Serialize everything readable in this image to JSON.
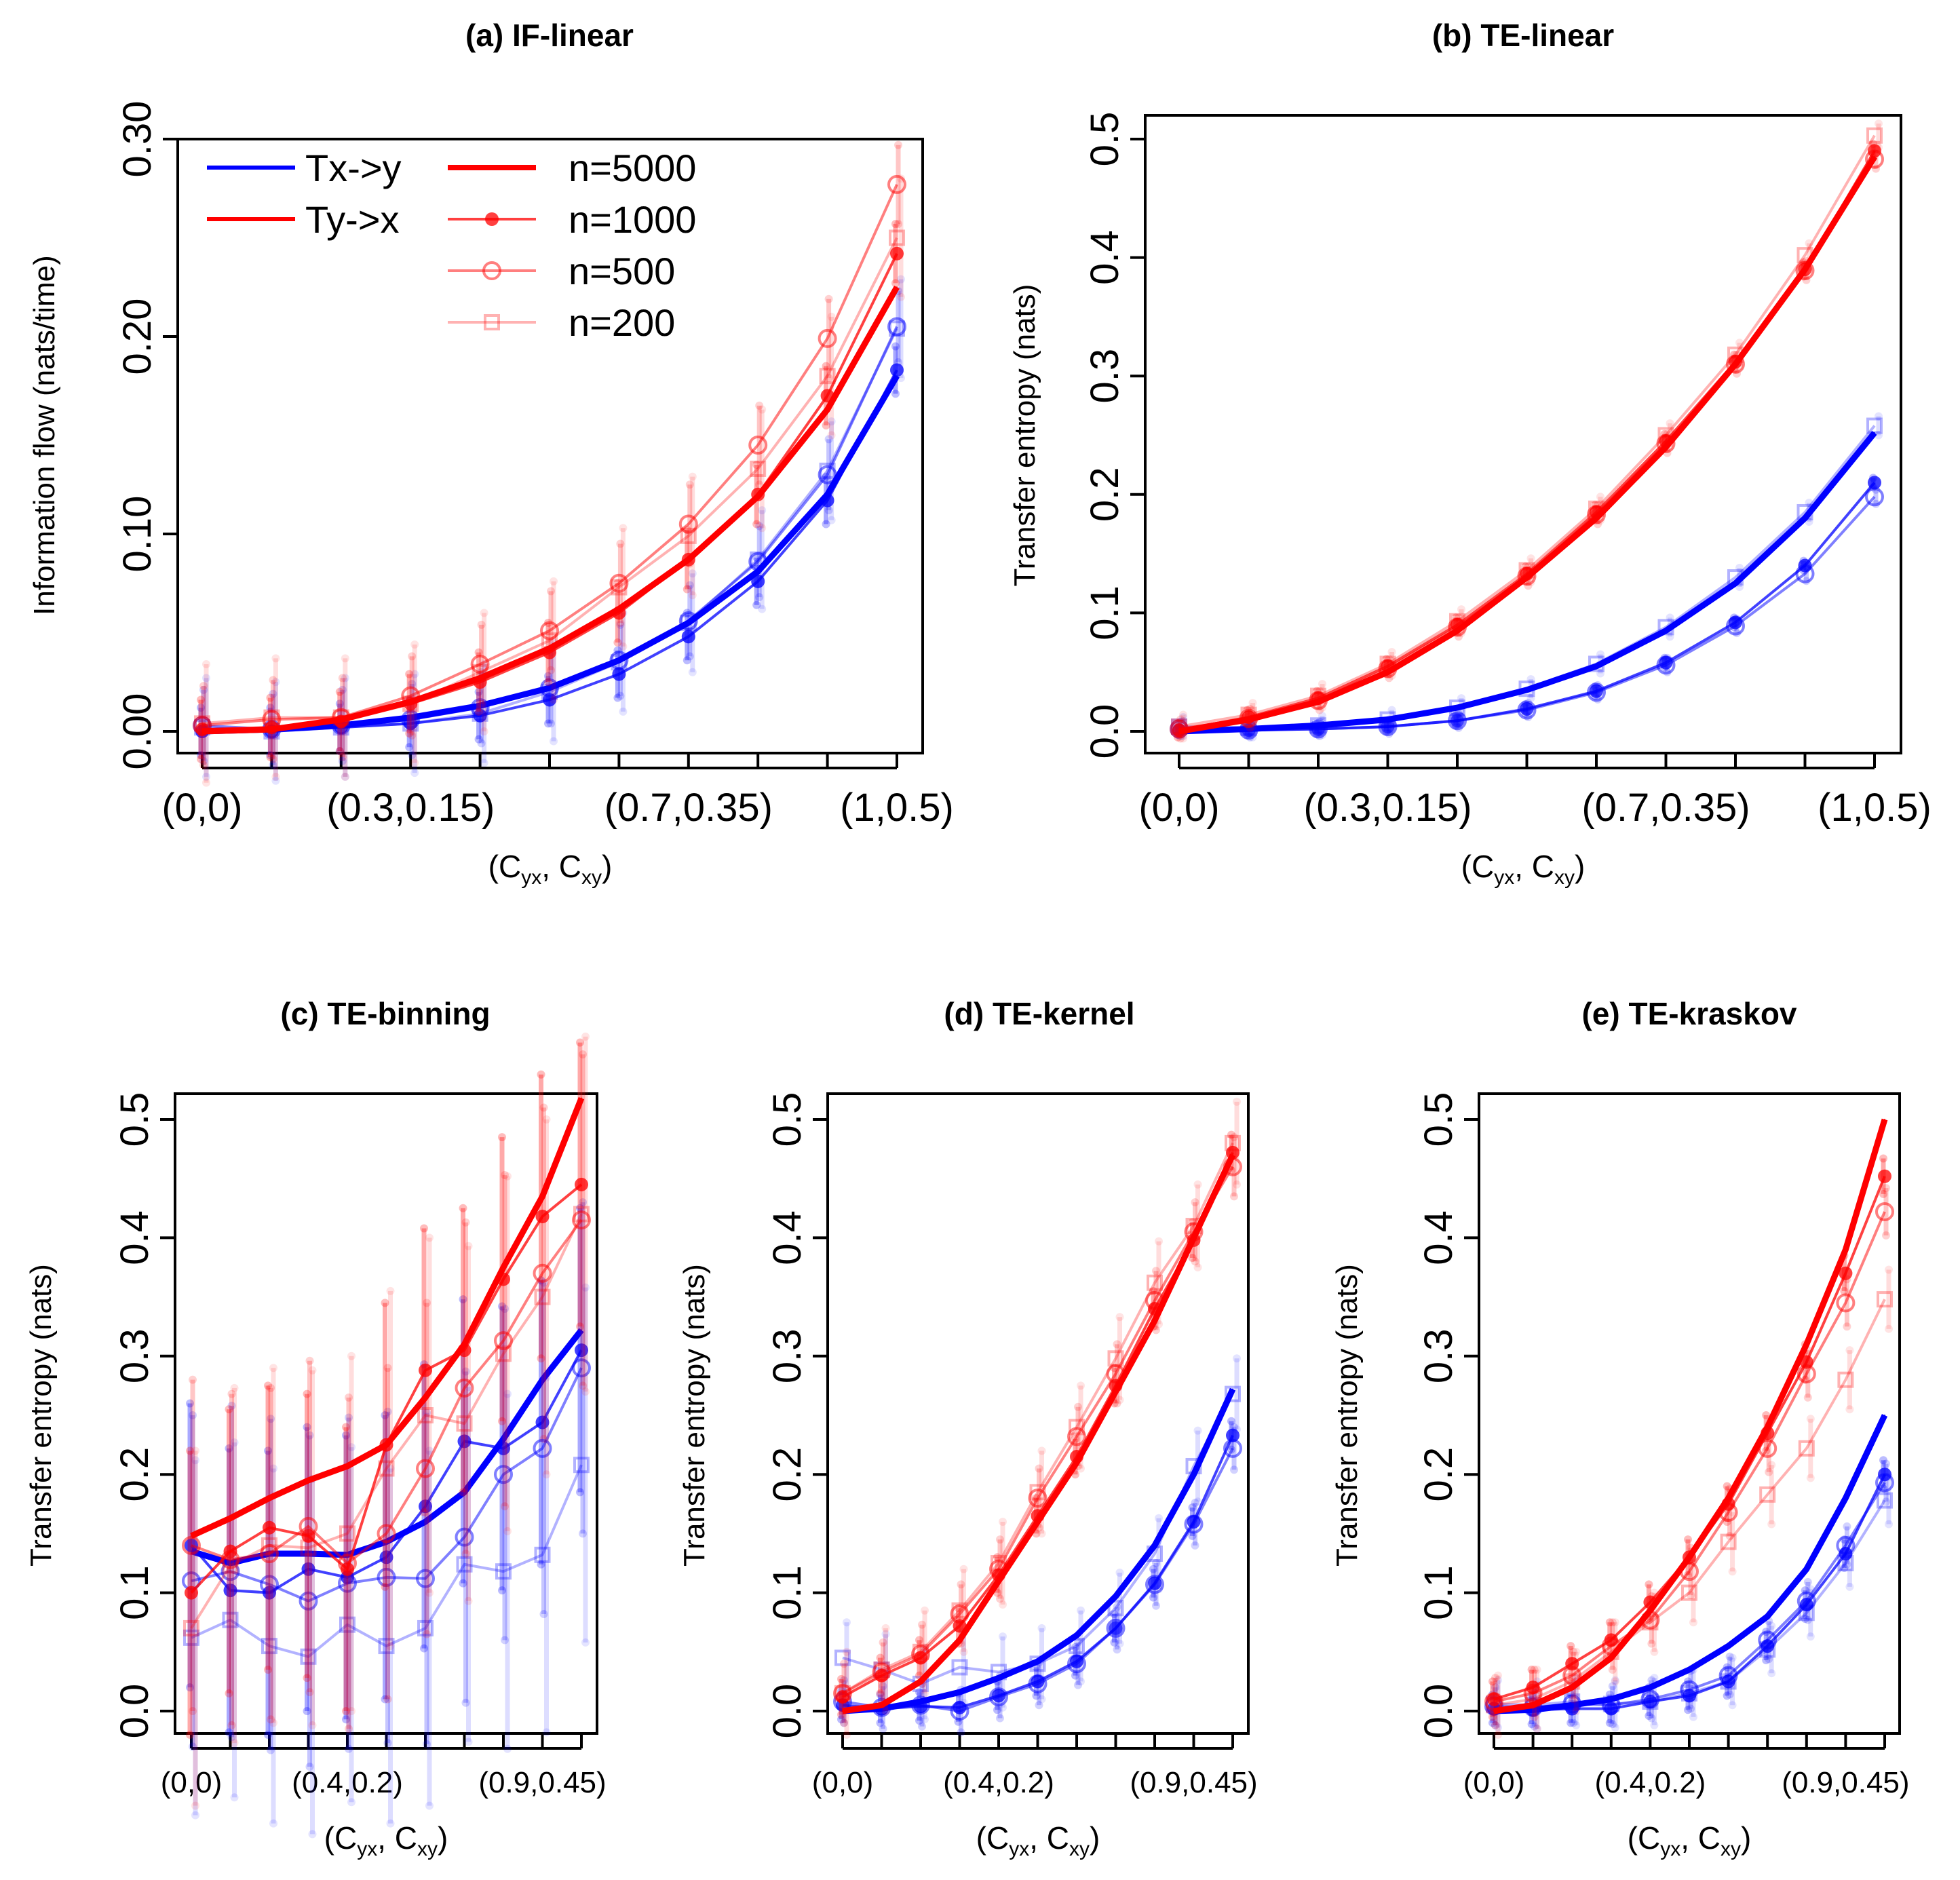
{
  "colors": {
    "Tx->y": "#0000ff",
    "Ty->x": "#ff0000",
    "n=5000": 1.0,
    "n=1000": 0.75,
    "n=500": 0.5,
    "n=200": 0.3
  },
  "legend": {
    "series": [
      "Tx->y",
      "Ty->x"
    ],
    "samples": [
      "n=5000",
      "n=1000",
      "n=500",
      "n=200"
    ]
  },
  "chart_data": [
    {
      "type": "line",
      "panel": "a",
      "title": "(a) IF-linear",
      "xlabel_main": "(C",
      "xlabel_sub1": "yx",
      "xlabel_mid": ", C",
      "xlabel_sub2": "xy",
      "xlabel_end": ")",
      "ylabel": "Information flow (nats/time)",
      "ylim": [
        0,
        0.3
      ],
      "yticks": [
        "0.00",
        "0.10",
        "0.20",
        "0.30"
      ],
      "ytick_values": [
        0,
        0.1,
        0.2,
        0.3
      ],
      "n_points": 11,
      "xtick_labels": [
        "(0,0)",
        "(0.3,0.15)",
        "(0.7,0.35)",
        "(1,0.5)"
      ],
      "xtick_index": [
        0,
        3,
        7,
        10
      ],
      "legend_shown": true,
      "series": [
        {
          "name": "Tx->y",
          "n": "n=5000",
          "values": [
            0.0,
            0.001,
            0.003,
            0.007,
            0.013,
            0.022,
            0.036,
            0.055,
            0.081,
            0.12,
            0.18
          ]
        },
        {
          "name": "Tx->y",
          "n": "n=1000",
          "values": [
            0.0,
            0.0,
            0.002,
            0.004,
            0.008,
            0.016,
            0.029,
            0.048,
            0.076,
            0.117,
            0.183
          ],
          "err": 0.012
        },
        {
          "name": "Tx->y",
          "n": "n=500",
          "values": [
            0.003,
            0.001,
            0.003,
            0.006,
            0.012,
            0.022,
            0.036,
            0.056,
            0.086,
            0.13,
            0.205
          ],
          "err": 0.018
        },
        {
          "name": "Tx->y",
          "n": "n=200",
          "values": [
            0.002,
            0.0,
            0.002,
            0.004,
            0.009,
            0.02,
            0.035,
            0.055,
            0.087,
            0.132,
            0.204
          ],
          "err": 0.025
        },
        {
          "name": "Ty->x",
          "n": "n=5000",
          "values": [
            0.0,
            0.001,
            0.006,
            0.015,
            0.027,
            0.042,
            0.062,
            0.087,
            0.119,
            0.163,
            0.225
          ]
        },
        {
          "name": "Ty->x",
          "n": "n=1000",
          "values": [
            0.001,
            0.002,
            0.005,
            0.014,
            0.025,
            0.04,
            0.06,
            0.087,
            0.12,
            0.17,
            0.242
          ],
          "err": 0.015
        },
        {
          "name": "Ty->x",
          "n": "n=500",
          "values": [
            0.003,
            0.006,
            0.007,
            0.018,
            0.034,
            0.051,
            0.075,
            0.105,
            0.145,
            0.199,
            0.277
          ],
          "err": 0.02
        },
        {
          "name": "Ty->x",
          "n": "n=200",
          "values": [
            0.004,
            0.007,
            0.007,
            0.014,
            0.03,
            0.046,
            0.073,
            0.099,
            0.133,
            0.18,
            0.25
          ],
          "err": 0.03
        }
      ]
    },
    {
      "type": "line",
      "panel": "b",
      "title": "(b) TE-linear",
      "xlabel_main": "(C",
      "xlabel_sub1": "yx",
      "xlabel_mid": ", C",
      "xlabel_sub2": "xy",
      "xlabel_end": ")",
      "ylabel": "Transfer entropy (nats)",
      "ylim": [
        0,
        0.5
      ],
      "yticks": [
        "0.0",
        "0.1",
        "0.2",
        "0.3",
        "0.4",
        "0.5"
      ],
      "ytick_values": [
        0,
        0.1,
        0.2,
        0.3,
        0.4,
        0.5
      ],
      "n_points": 11,
      "xtick_labels": [
        "(0,0)",
        "(0.3,0.15)",
        "(0.7,0.35)",
        "(1,0.5)"
      ],
      "xtick_index": [
        0,
        3,
        7,
        10
      ],
      "legend_shown": false,
      "series": [
        {
          "name": "Tx->y",
          "n": "n=5000",
          "values": [
            0.0,
            0.002,
            0.005,
            0.01,
            0.02,
            0.035,
            0.055,
            0.085,
            0.125,
            0.18,
            0.252
          ]
        },
        {
          "name": "Tx->y",
          "n": "n=1000",
          "values": [
            0.001,
            0.001,
            0.002,
            0.004,
            0.009,
            0.019,
            0.034,
            0.058,
            0.092,
            0.14,
            0.21
          ],
          "err": 0.004
        },
        {
          "name": "Tx->y",
          "n": "n=500",
          "values": [
            0.002,
            0.001,
            0.002,
            0.004,
            0.009,
            0.018,
            0.033,
            0.056,
            0.089,
            0.133,
            0.198
          ],
          "err": 0.006
        },
        {
          "name": "Tx->y",
          "n": "n=200",
          "values": [
            0.004,
            0.003,
            0.005,
            0.01,
            0.02,
            0.036,
            0.057,
            0.088,
            0.13,
            0.185,
            0.258
          ],
          "err": 0.008
        },
        {
          "name": "Ty->x",
          "n": "n=5000",
          "values": [
            0.0,
            0.01,
            0.025,
            0.05,
            0.085,
            0.13,
            0.18,
            0.24,
            0.31,
            0.39,
            0.485
          ]
        },
        {
          "name": "Ty->x",
          "n": "n=1000",
          "values": [
            0.001,
            0.012,
            0.028,
            0.055,
            0.09,
            0.133,
            0.185,
            0.245,
            0.312,
            0.39,
            0.49
          ],
          "err": 0.006
        },
        {
          "name": "Ty->x",
          "n": "n=500",
          "values": [
            0.002,
            0.011,
            0.026,
            0.053,
            0.088,
            0.131,
            0.183,
            0.243,
            0.31,
            0.389,
            0.483
          ],
          "err": 0.008
        },
        {
          "name": "Ty->x",
          "n": "n=200",
          "values": [
            0.004,
            0.014,
            0.03,
            0.057,
            0.093,
            0.136,
            0.188,
            0.25,
            0.318,
            0.402,
            0.503
          ],
          "err": 0.01
        }
      ]
    },
    {
      "type": "line",
      "panel": "c",
      "title": "(c) TE-binning",
      "xlabel_main": "(C",
      "xlabel_sub1": "yx",
      "xlabel_mid": ", C",
      "xlabel_sub2": "xy",
      "xlabel_end": ")",
      "ylabel": "Transfer entropy (nats)",
      "ylim": [
        0,
        0.5
      ],
      "yticks": [
        "0.0",
        "0.1",
        "0.2",
        "0.3",
        "0.4",
        "0.5"
      ],
      "ytick_values": [
        0,
        0.1,
        0.2,
        0.3,
        0.4,
        0.5
      ],
      "n_points": 11,
      "xtick_labels": [
        "(0,0)",
        "(0.4,0.2)",
        "(0.9,0.45)"
      ],
      "xtick_index": [
        0,
        4,
        9
      ],
      "legend_shown": false,
      "series": [
        {
          "name": "Tx->y",
          "n": "n=5000",
          "values": [
            0.135,
            0.125,
            0.133,
            0.133,
            0.132,
            0.143,
            0.16,
            0.185,
            0.23,
            0.28,
            0.322
          ]
        },
        {
          "name": "Tx->y",
          "n": "n=1000",
          "values": [
            0.14,
            0.102,
            0.1,
            0.12,
            0.113,
            0.13,
            0.173,
            0.228,
            0.222,
            0.244,
            0.305
          ],
          "err": 0.12
        },
        {
          "name": "Tx->y",
          "n": "n=500",
          "values": [
            0.11,
            0.118,
            0.107,
            0.093,
            0.108,
            0.113,
            0.112,
            0.147,
            0.2,
            0.222,
            0.29
          ],
          "err": 0.14
        },
        {
          "name": "Tx->y",
          "n": "n=200",
          "values": [
            0.062,
            0.077,
            0.055,
            0.046,
            0.073,
            0.055,
            0.07,
            0.124,
            0.118,
            0.132,
            0.208
          ],
          "err": 0.15
        },
        {
          "name": "Ty->x",
          "n": "n=5000",
          "values": [
            0.148,
            0.163,
            0.18,
            0.195,
            0.207,
            0.225,
            0.265,
            0.31,
            0.375,
            0.435,
            0.518
          ]
        },
        {
          "name": "Ty->x",
          "n": "n=1000",
          "values": [
            0.1,
            0.135,
            0.155,
            0.148,
            0.12,
            0.225,
            0.288,
            0.305,
            0.365,
            0.418,
            0.445
          ],
          "err": 0.12
        },
        {
          "name": "Ty->x",
          "n": "n=500",
          "values": [
            0.14,
            0.128,
            0.133,
            0.156,
            0.125,
            0.15,
            0.205,
            0.273,
            0.313,
            0.37,
            0.415
          ],
          "err": 0.14
        },
        {
          "name": "Ty->x",
          "n": "n=200",
          "values": [
            0.07,
            0.123,
            0.14,
            0.138,
            0.15,
            0.205,
            0.25,
            0.243,
            0.302,
            0.35,
            0.42
          ],
          "err": 0.15
        }
      ]
    },
    {
      "type": "line",
      "panel": "d",
      "title": "(d) TE-kernel",
      "xlabel_main": "(C",
      "xlabel_sub1": "yx",
      "xlabel_mid": ", C",
      "xlabel_sub2": "xy",
      "xlabel_end": ")",
      "ylabel": "Transfer entropy (nats)",
      "ylim": [
        0,
        0.5
      ],
      "yticks": [
        "0.0",
        "0.1",
        "0.2",
        "0.3",
        "0.4",
        "0.5"
      ],
      "ytick_values": [
        0,
        0.1,
        0.2,
        0.3,
        0.4,
        0.5
      ],
      "n_points": 11,
      "xtick_labels": [
        "(0,0)",
        "(0.4,0.2)",
        "(0.9,0.45)"
      ],
      "xtick_index": [
        0,
        4,
        9
      ],
      "legend_shown": false,
      "series": [
        {
          "name": "Tx->y",
          "n": "n=5000",
          "values": [
            0.0,
            0.002,
            0.008,
            0.016,
            0.028,
            0.042,
            0.064,
            0.097,
            0.14,
            0.2,
            0.272
          ]
        },
        {
          "name": "Tx->y",
          "n": "n=1000",
          "values": [
            0.005,
            0.002,
            0.004,
            0.003,
            0.013,
            0.025,
            0.042,
            0.07,
            0.108,
            0.16,
            0.233
          ],
          "err": 0.012
        },
        {
          "name": "Tx->y",
          "n": "n=500",
          "values": [
            0.008,
            0.003,
            0.005,
            0.0,
            0.012,
            0.023,
            0.04,
            0.07,
            0.107,
            0.158,
            0.222
          ],
          "err": 0.018
        },
        {
          "name": "Tx->y",
          "n": "n=200",
          "values": [
            0.045,
            0.035,
            0.023,
            0.037,
            0.033,
            0.04,
            0.055,
            0.087,
            0.133,
            0.207,
            0.268
          ],
          "err": 0.03
        },
        {
          "name": "Ty->x",
          "n": "n=5000",
          "values": [
            0.0,
            0.005,
            0.025,
            0.06,
            0.11,
            0.16,
            0.21,
            0.27,
            0.33,
            0.4,
            0.47
          ]
        },
        {
          "name": "Ty->x",
          "n": "n=1000",
          "values": [
            0.012,
            0.03,
            0.045,
            0.072,
            0.115,
            0.165,
            0.215,
            0.275,
            0.34,
            0.398,
            0.472
          ],
          "err": 0.015
        },
        {
          "name": "Ty->x",
          "n": "n=500",
          "values": [
            0.015,
            0.033,
            0.048,
            0.082,
            0.12,
            0.18,
            0.232,
            0.285,
            0.347,
            0.405,
            0.46
          ],
          "err": 0.025
        },
        {
          "name": "Ty->x",
          "n": "n=200",
          "values": [
            0.015,
            0.035,
            0.05,
            0.085,
            0.125,
            0.185,
            0.24,
            0.298,
            0.362,
            0.41,
            0.48
          ],
          "err": 0.035
        }
      ]
    },
    {
      "type": "line",
      "panel": "e",
      "title": "(e) TE-kraskov",
      "xlabel_main": "(C",
      "xlabel_sub1": "yx",
      "xlabel_mid": ", C",
      "xlabel_sub2": "xy",
      "xlabel_end": ")",
      "ylabel": "Transfer entropy (nats)",
      "ylim": [
        0,
        0.5
      ],
      "yticks": [
        "0.0",
        "0.1",
        "0.2",
        "0.3",
        "0.4",
        "0.5"
      ],
      "ytick_values": [
        0,
        0.1,
        0.2,
        0.3,
        0.4,
        0.5
      ],
      "n_points": 11,
      "xtick_labels": [
        "(0,0)",
        "(0.4,0.2)",
        "(0.9,0.45)"
      ],
      "xtick_index": [
        0,
        4,
        9
      ],
      "legend_shown": false,
      "series": [
        {
          "name": "Tx->y",
          "n": "n=5000",
          "values": [
            0.0,
            0.001,
            0.005,
            0.01,
            0.02,
            0.035,
            0.055,
            0.08,
            0.12,
            0.18,
            0.25
          ]
        },
        {
          "name": "Tx->y",
          "n": "n=1000",
          "values": [
            0.002,
            0.001,
            0.002,
            0.002,
            0.008,
            0.013,
            0.025,
            0.055,
            0.09,
            0.133,
            0.2
          ],
          "err": 0.012
        },
        {
          "name": "Tx->y",
          "n": "n=500",
          "values": [
            0.004,
            0.003,
            0.006,
            0.005,
            0.01,
            0.018,
            0.03,
            0.06,
            0.093,
            0.14,
            0.193
          ],
          "err": 0.016
        },
        {
          "name": "Tx->y",
          "n": "n=200",
          "values": [
            0.006,
            0.005,
            0.008,
            0.006,
            0.008,
            0.015,
            0.025,
            0.052,
            0.083,
            0.125,
            0.178
          ],
          "err": 0.02
        },
        {
          "name": "Ty->x",
          "n": "n=5000",
          "values": [
            0.0,
            0.005,
            0.02,
            0.045,
            0.085,
            0.13,
            0.18,
            0.24,
            0.31,
            0.39,
            0.5
          ]
        },
        {
          "name": "Ty->x",
          "n": "n=1000",
          "values": [
            0.01,
            0.02,
            0.04,
            0.06,
            0.092,
            0.13,
            0.175,
            0.235,
            0.295,
            0.37,
            0.452
          ],
          "err": 0.015
        },
        {
          "name": "Ty->x",
          "n": "n=500",
          "values": [
            0.008,
            0.015,
            0.03,
            0.055,
            0.077,
            0.118,
            0.168,
            0.222,
            0.285,
            0.345,
            0.422
          ],
          "err": 0.02
        },
        {
          "name": "Ty->x",
          "n": "n=200",
          "values": [
            0.005,
            0.01,
            0.025,
            0.05,
            0.075,
            0.1,
            0.143,
            0.183,
            0.222,
            0.28,
            0.348
          ],
          "err": 0.025
        }
      ]
    }
  ]
}
